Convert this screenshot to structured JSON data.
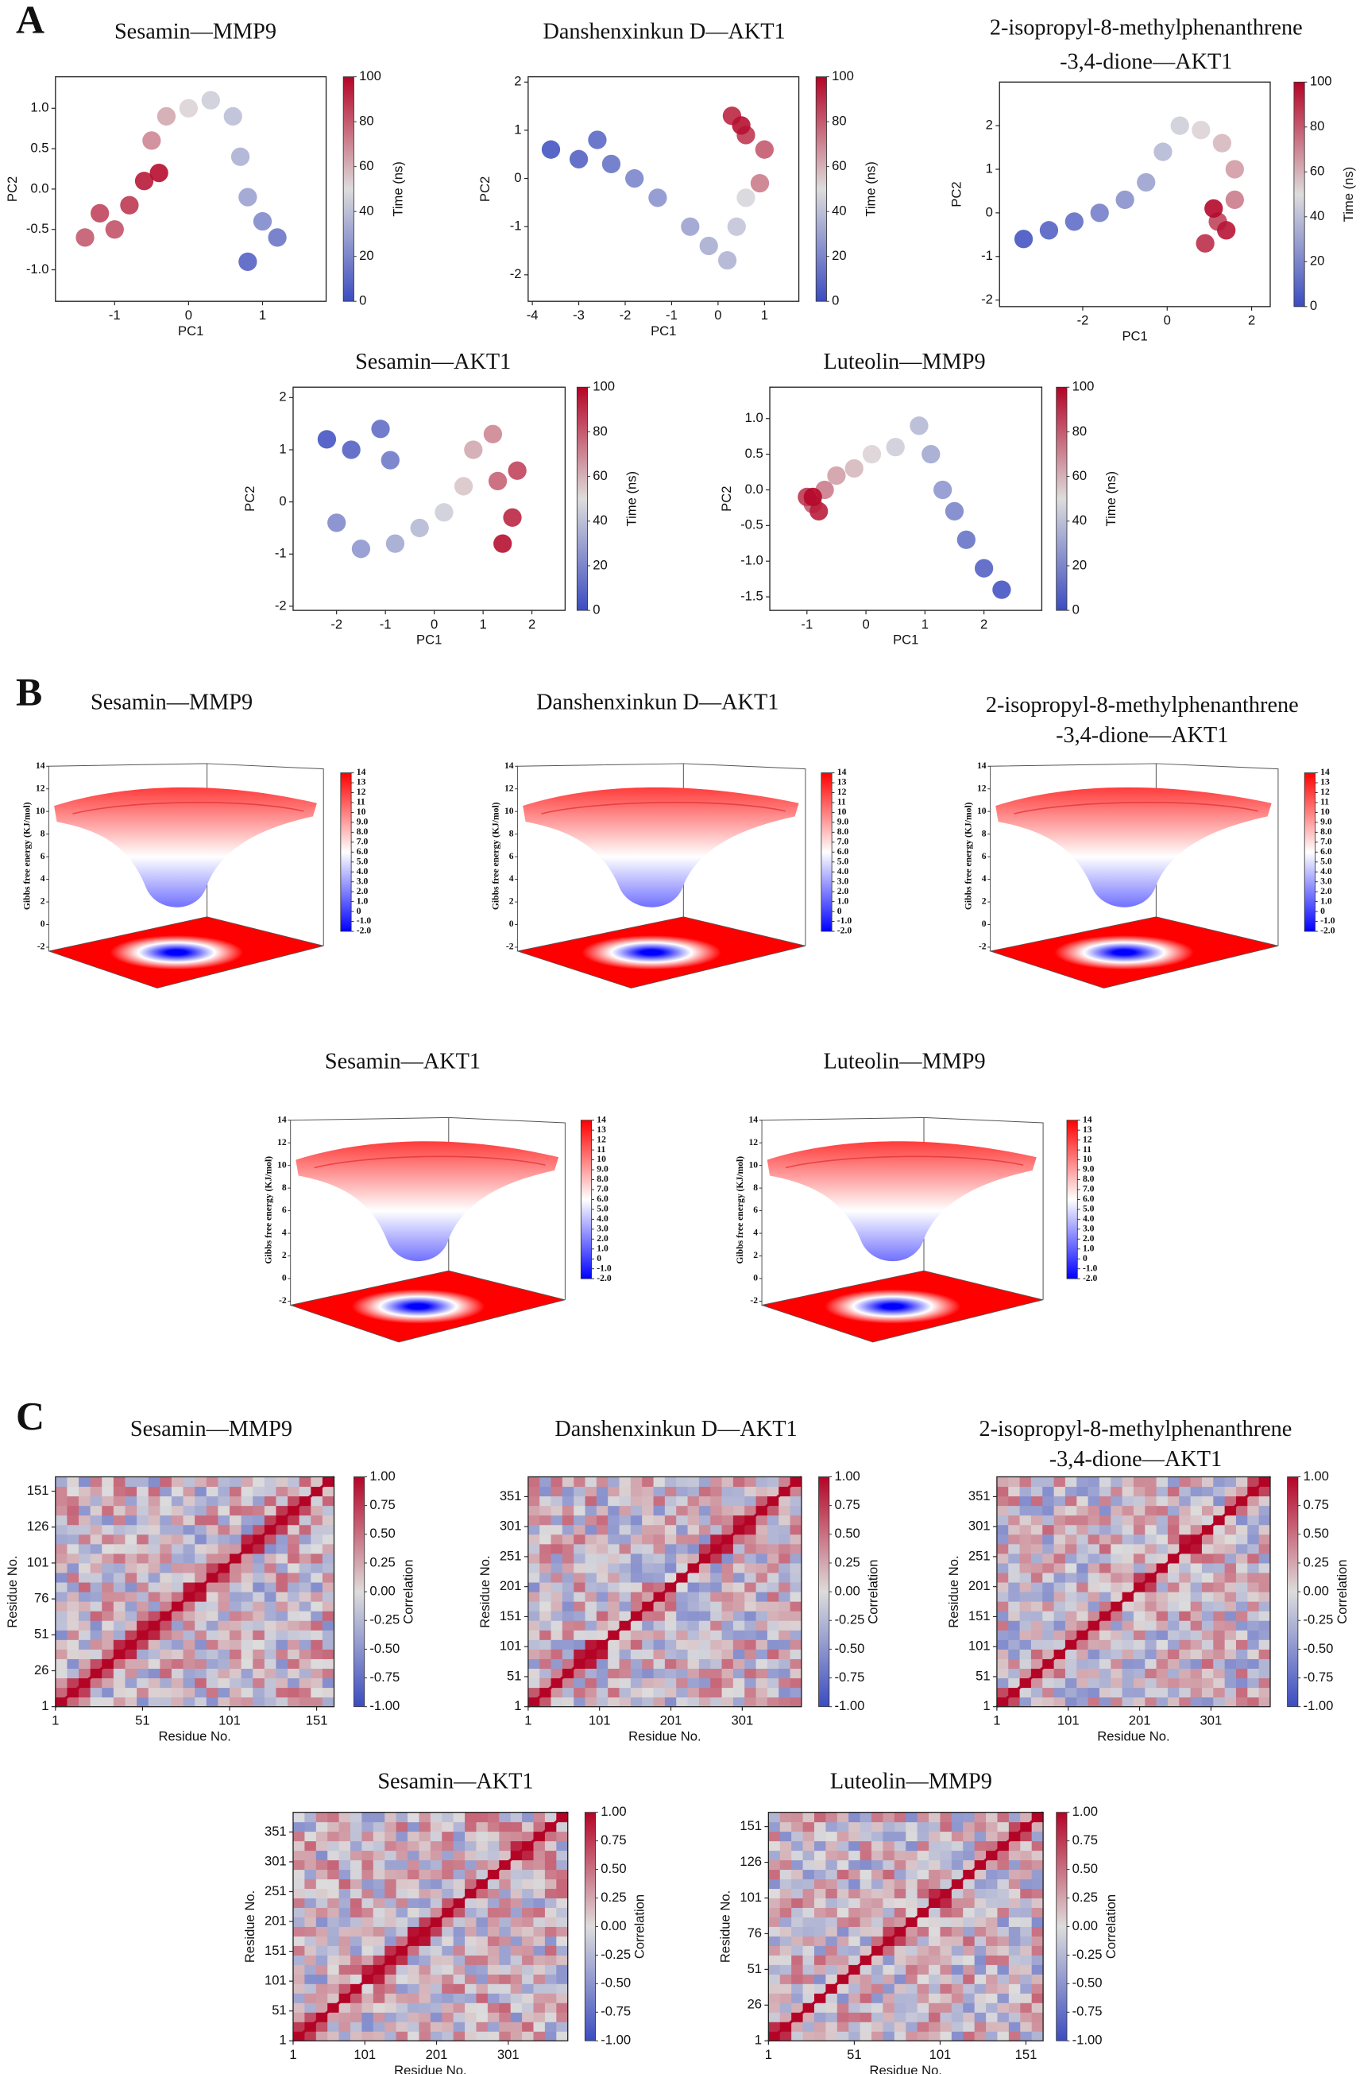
{
  "panel_labels": [
    "A",
    "B",
    "C"
  ],
  "chart_data": [
    {
      "type": "scatter",
      "title": "Sesamin—MMP9",
      "xlabel": "PC1",
      "ylabel": "PC2",
      "xlim": [
        -1.8,
        1.86
      ],
      "xticks": [
        -1,
        0,
        1
      ],
      "ylim": [
        -1.39,
        1.39
      ],
      "yticks": [
        {
          "value": -1,
          "label": "-1.0"
        },
        -0.5,
        {
          "value": 0,
          "label": "0.0"
        },
        0.5,
        {
          "value": 1,
          "label": "1.0"
        }
      ],
      "x": [
        -1.4,
        -1.2,
        -1.0,
        -0.8,
        -0.6,
        -0.4,
        -0.5,
        -0.3,
        0.0,
        0.3,
        0.6,
        0.7,
        0.8,
        1.0,
        1.2,
        0.8
      ],
      "y": [
        -0.6,
        -0.3,
        -0.5,
        -0.2,
        0.1,
        0.2,
        0.6,
        0.9,
        1.0,
        1.1,
        0.9,
        0.4,
        -0.1,
        -0.4,
        -0.6,
        -0.9
      ],
      "time": [
        80,
        85,
        82,
        88,
        95,
        98,
        70,
        62,
        52,
        45,
        40,
        35,
        30,
        22,
        15,
        8
      ],
      "colorbar_label": "Time (ns)",
      "clim": [
        0,
        100
      ],
      "cticks": [
        0,
        20,
        40,
        60,
        80,
        100
      ],
      "colormap": [
        "#3b4cc0",
        "#dddcdc",
        "#b40426"
      ]
    },
    {
      "type": "scatter",
      "title": "Danshenxinkun D—AKT1",
      "xlabel": "PC1",
      "ylabel": "PC2",
      "xlim": [
        -4.09,
        1.74
      ],
      "xticks": [
        -4,
        -3,
        -2,
        -1,
        0,
        1
      ],
      "ylim": [
        -2.55,
        2.11
      ],
      "yticks": [
        -2,
        -1,
        0,
        1,
        2
      ],
      "x": [
        -3.6,
        -3.0,
        -2.6,
        -2.3,
        -1.8,
        -1.3,
        -0.6,
        -0.2,
        0.2,
        0.4,
        0.6,
        0.9,
        1.0,
        0.6,
        0.3,
        0.5
      ],
      "y": [
        0.6,
        0.4,
        0.8,
        0.3,
        0.0,
        -0.4,
        -1.0,
        -1.4,
        -1.7,
        -1.0,
        -0.4,
        -0.1,
        0.6,
        0.9,
        1.3,
        1.1
      ],
      "time": [
        3,
        8,
        10,
        14,
        20,
        25,
        30,
        34,
        36,
        42,
        48,
        72,
        80,
        88,
        92,
        97
      ],
      "colorbar_label": "Time (ns)",
      "clim": [
        0,
        100
      ],
      "cticks": [
        0,
        20,
        40,
        60,
        80,
        100
      ],
      "colormap": [
        "#3b4cc0",
        "#dddcdc",
        "#b40426"
      ]
    },
    {
      "type": "scatter",
      "title": [
        "2-isopropyl-8-methylphenanthrene",
        "-3,4-dione—AKT1"
      ],
      "xlabel": "PC1",
      "ylabel": "PC2",
      "xlim": [
        -3.97,
        2.44
      ],
      "xticks": [
        -2,
        0,
        2
      ],
      "ylim": [
        -2.15,
        3.0
      ],
      "yticks": [
        -2,
        -1,
        0,
        1,
        2
      ],
      "x": [
        -3.4,
        -2.8,
        -2.2,
        -1.6,
        -1.0,
        -0.5,
        -0.1,
        0.3,
        0.8,
        1.3,
        1.6,
        1.6,
        1.2,
        0.9,
        1.4,
        1.1
      ],
      "y": [
        -0.6,
        -0.4,
        -0.2,
        0.0,
        0.3,
        0.7,
        1.4,
        2.0,
        1.9,
        1.6,
        1.0,
        0.3,
        -0.2,
        -0.7,
        -0.4,
        0.1
      ],
      "time": [
        3,
        8,
        12,
        18,
        24,
        30,
        38,
        45,
        52,
        58,
        65,
        72,
        85,
        90,
        96,
        99
      ],
      "colorbar_label": "Time (ns)",
      "clim": [
        0,
        100
      ],
      "cticks": [
        0,
        20,
        40,
        60,
        80,
        100
      ],
      "colormap": [
        "#3b4cc0",
        "#dddcdc",
        "#b40426"
      ]
    },
    {
      "type": "scatter",
      "title": "Sesamin—AKT1",
      "xlabel": "PC1",
      "ylabel": "PC2",
      "xlim": [
        -2.89,
        2.68
      ],
      "xticks": [
        -2,
        -1,
        0,
        1,
        2
      ],
      "ylim": [
        -2.08,
        2.2
      ],
      "yticks": [
        -2,
        -1,
        0,
        1,
        2
      ],
      "x": [
        -2.2,
        -1.7,
        -1.1,
        -0.9,
        -2.0,
        -1.5,
        -0.8,
        -0.3,
        0.2,
        0.6,
        0.8,
        1.2,
        1.3,
        1.7,
        1.6,
        1.4
      ],
      "y": [
        1.2,
        1.0,
        1.4,
        0.8,
        -0.4,
        -0.9,
        -0.8,
        -0.5,
        -0.2,
        0.3,
        1.0,
        1.3,
        0.4,
        0.6,
        -0.3,
        -0.8
      ],
      "time": [
        3,
        8,
        12,
        16,
        22,
        26,
        32,
        38,
        45,
        55,
        62,
        70,
        78,
        85,
        92,
        97
      ],
      "colorbar_label": "Time (ns)",
      "clim": [
        0,
        100
      ],
      "cticks": [
        0,
        20,
        40,
        60,
        80,
        100
      ],
      "colormap": [
        "#3b4cc0",
        "#dddcdc",
        "#b40426"
      ]
    },
    {
      "type": "scatter",
      "title": "Luteolin—MMP9",
      "xlabel": "PC1",
      "ylabel": "PC2",
      "xlim": [
        -1.63,
        2.98
      ],
      "xticks": [
        -1,
        0,
        1,
        2
      ],
      "ylim": [
        -1.69,
        1.44
      ],
      "yticks": [
        -1.5,
        {
          "value": -1,
          "label": "-1.0"
        },
        -0.5,
        {
          "value": 0,
          "label": "0.0"
        },
        0.5,
        {
          "value": 1,
          "label": "1.0"
        }
      ],
      "x": [
        2.3,
        2.0,
        1.7,
        1.5,
        1.3,
        1.1,
        0.9,
        0.5,
        0.1,
        -0.2,
        -0.5,
        -0.7,
        -0.9,
        -1.0,
        -0.8,
        -0.9
      ],
      "y": [
        -1.4,
        -1.1,
        -0.7,
        -0.3,
        0.0,
        0.5,
        0.9,
        0.6,
        0.5,
        0.3,
        0.2,
        0.0,
        -0.2,
        -0.1,
        -0.3,
        -0.1
      ],
      "time": [
        3,
        8,
        14,
        20,
        26,
        32,
        38,
        45,
        52,
        58,
        64,
        72,
        80,
        88,
        94,
        99
      ],
      "colorbar_label": "Time (ns)",
      "clim": [
        0,
        100
      ],
      "cticks": [
        0,
        20,
        40,
        60,
        80,
        100
      ],
      "colormap": [
        "#3b4cc0",
        "#dddcdc",
        "#b40426"
      ]
    },
    {
      "type": "surface3d",
      "title": "Sesamin—MMP9",
      "zlabel": "Gibbs free energy (KJ/mol)",
      "zlim": [
        -2,
        14
      ],
      "zticks": [
        -2,
        0,
        2,
        4,
        6,
        8,
        10,
        12,
        14
      ],
      "clim": [
        -2,
        14
      ],
      "cticks": [
        {
          "value": -2,
          "label": "-2.0"
        },
        {
          "value": -1,
          "label": "-1.0"
        },
        0,
        {
          "value": 1,
          "label": "1.0"
        },
        {
          "value": 2,
          "label": "2.0"
        },
        {
          "value": 3,
          "label": "3.0"
        },
        {
          "value": 4,
          "label": "4.0"
        },
        {
          "value": 5,
          "label": "5.0"
        },
        {
          "value": 6,
          "label": "6.0"
        },
        {
          "value": 7,
          "label": "7.0"
        },
        {
          "value": 8,
          "label": "8.0"
        },
        {
          "value": 9,
          "label": "9.0"
        },
        10,
        11,
        12,
        13,
        14
      ],
      "colormap": [
        "#0000ff",
        "#ffffff",
        "#ff0000"
      ]
    },
    {
      "type": "surface3d",
      "title": "Danshenxinkun D—AKT1",
      "zlabel": "Gibbs free energy (KJ/mol)",
      "zlim": [
        -2,
        14
      ],
      "zticks": [
        -2,
        0,
        2,
        4,
        6,
        8,
        10,
        12,
        14
      ],
      "clim": [
        -2,
        14
      ],
      "cticks": [
        {
          "value": -2,
          "label": "-2.0"
        },
        {
          "value": -1,
          "label": "-1.0"
        },
        0,
        {
          "value": 1,
          "label": "1.0"
        },
        {
          "value": 2,
          "label": "2.0"
        },
        {
          "value": 3,
          "label": "3.0"
        },
        {
          "value": 4,
          "label": "4.0"
        },
        {
          "value": 5,
          "label": "5.0"
        },
        {
          "value": 6,
          "label": "6.0"
        },
        {
          "value": 7,
          "label": "7.0"
        },
        {
          "value": 8,
          "label": "8.0"
        },
        {
          "value": 9,
          "label": "9.0"
        },
        10,
        11,
        12,
        13,
        14
      ],
      "colormap": [
        "#0000ff",
        "#ffffff",
        "#ff0000"
      ]
    },
    {
      "type": "surface3d",
      "title": [
        "2-isopropyl-8-methylphenanthrene",
        "-3,4-dione—AKT1"
      ],
      "zlabel": "Gibbs free energy (KJ/mol)",
      "zlim": [
        -2,
        14
      ],
      "zticks": [
        -2,
        0,
        2,
        4,
        6,
        8,
        10,
        12,
        14
      ],
      "clim": [
        -2,
        14
      ],
      "cticks": [
        {
          "value": -2,
          "label": "-2.0"
        },
        {
          "value": -1,
          "label": "-1.0"
        },
        0,
        {
          "value": 1,
          "label": "1.0"
        },
        {
          "value": 2,
          "label": "2.0"
        },
        {
          "value": 3,
          "label": "3.0"
        },
        {
          "value": 4,
          "label": "4.0"
        },
        {
          "value": 5,
          "label": "5.0"
        },
        {
          "value": 6,
          "label": "6.0"
        },
        {
          "value": 7,
          "label": "7.0"
        },
        {
          "value": 8,
          "label": "8.0"
        },
        {
          "value": 9,
          "label": "9.0"
        },
        10,
        11,
        12,
        13,
        14
      ],
      "colormap": [
        "#0000ff",
        "#ffffff",
        "#ff0000"
      ]
    },
    {
      "type": "surface3d",
      "title": "Sesamin—AKT1",
      "zlabel": "Gibbs free energy (KJ/mol)",
      "zlim": [
        -2,
        14
      ],
      "zticks": [
        -2,
        0,
        2,
        4,
        6,
        8,
        10,
        12,
        14
      ],
      "clim": [
        -2,
        14
      ],
      "cticks": [
        {
          "value": -2,
          "label": "-2.0"
        },
        {
          "value": -1,
          "label": "-1.0"
        },
        0,
        {
          "value": 1,
          "label": "1.0"
        },
        {
          "value": 2,
          "label": "2.0"
        },
        {
          "value": 3,
          "label": "3.0"
        },
        {
          "value": 4,
          "label": "4.0"
        },
        {
          "value": 5,
          "label": "5.0"
        },
        {
          "value": 6,
          "label": "6.0"
        },
        {
          "value": 7,
          "label": "7.0"
        },
        {
          "value": 8,
          "label": "8.0"
        },
        {
          "value": 9,
          "label": "9.0"
        },
        10,
        11,
        12,
        13,
        14
      ],
      "colormap": [
        "#0000ff",
        "#ffffff",
        "#ff0000"
      ]
    },
    {
      "type": "surface3d",
      "title": "Luteolin—MMP9",
      "zlabel": "Gibbs free energy (KJ/mol)",
      "zlim": [
        -2,
        14
      ],
      "zticks": [
        -2,
        0,
        2,
        4,
        6,
        8,
        10,
        12,
        14
      ],
      "clim": [
        -2,
        14
      ],
      "cticks": [
        {
          "value": -2,
          "label": "-2.0"
        },
        {
          "value": -1,
          "label": "-1.0"
        },
        0,
        {
          "value": 1,
          "label": "1.0"
        },
        {
          "value": 2,
          "label": "2.0"
        },
        {
          "value": 3,
          "label": "3.0"
        },
        {
          "value": 4,
          "label": "4.0"
        },
        {
          "value": 5,
          "label": "5.0"
        },
        {
          "value": 6,
          "label": "6.0"
        },
        {
          "value": 7,
          "label": "7.0"
        },
        {
          "value": 8,
          "label": "8.0"
        },
        {
          "value": 9,
          "label": "9.0"
        },
        10,
        11,
        12,
        13,
        14
      ],
      "colormap": [
        "#0000ff",
        "#ffffff",
        "#ff0000"
      ]
    },
    {
      "type": "heatmap",
      "title": "Sesamin—MMP9",
      "xlabel": "Residue No.",
      "ylabel": "Residue No.",
      "xlim": [
        1,
        161
      ],
      "ylim": [
        1,
        161
      ],
      "xticks": [
        1,
        51,
        101,
        151
      ],
      "yticks": [
        1,
        26,
        51,
        76,
        101,
        126,
        151
      ],
      "colorbar_label": "Correlation",
      "clim": [
        -1,
        1
      ],
      "cticks": [
        {
          "value": -1,
          "label": "-1.00"
        },
        -0.75,
        {
          "value": -0.5,
          "label": "-0.50"
        },
        -0.25,
        {
          "value": 0,
          "label": "0.00"
        },
        0.25,
        {
          "value": 0.5,
          "label": "0.50"
        },
        0.75,
        {
          "value": 1,
          "label": "1.00"
        }
      ],
      "colormap": [
        "#3b4cc0",
        "#dddcdc",
        "#b40426"
      ]
    },
    {
      "type": "heatmap",
      "title": "Danshenxinkun D—AKT1",
      "xlabel": "Residue No.",
      "ylabel": "Residue No.",
      "xlim": [
        1,
        384
      ],
      "ylim": [
        1,
        384
      ],
      "xticks": [
        1,
        101,
        201,
        301
      ],
      "yticks": [
        1,
        51,
        101,
        151,
        201,
        251,
        301,
        351
      ],
      "colorbar_label": "Correlation",
      "clim": [
        -1,
        1
      ],
      "cticks": [
        {
          "value": -1,
          "label": "-1.00"
        },
        -0.75,
        {
          "value": -0.5,
          "label": "-0.50"
        },
        -0.25,
        {
          "value": 0,
          "label": "0.00"
        },
        0.25,
        {
          "value": 0.5,
          "label": "0.50"
        },
        0.75,
        {
          "value": 1,
          "label": "1.00"
        }
      ],
      "colormap": [
        "#3b4cc0",
        "#dddcdc",
        "#b40426"
      ]
    },
    {
      "type": "heatmap",
      "title": [
        "2-isopropyl-8-methylphenanthrene",
        "-3,4-dione—AKT1"
      ],
      "xlabel": "Residue No.",
      "ylabel": "Residue No.",
      "xlim": [
        1,
        384
      ],
      "ylim": [
        1,
        384
      ],
      "xticks": [
        1,
        101,
        201,
        301
      ],
      "yticks": [
        1,
        51,
        101,
        151,
        201,
        251,
        301,
        351
      ],
      "colorbar_label": "Correlation",
      "clim": [
        -1,
        1
      ],
      "cticks": [
        {
          "value": -1,
          "label": "-1.00"
        },
        -0.75,
        {
          "value": -0.5,
          "label": "-0.50"
        },
        -0.25,
        {
          "value": 0,
          "label": "0.00"
        },
        0.25,
        {
          "value": 0.5,
          "label": "0.50"
        },
        0.75,
        {
          "value": 1,
          "label": "1.00"
        }
      ],
      "colormap": [
        "#3b4cc0",
        "#dddcdc",
        "#b40426"
      ]
    },
    {
      "type": "heatmap",
      "title": "Sesamin—AKT1",
      "xlabel": "Residue No.",
      "ylabel": "Residue No.",
      "xlim": [
        1,
        384
      ],
      "ylim": [
        1,
        384
      ],
      "xticks": [
        1,
        101,
        201,
        301
      ],
      "yticks": [
        1,
        51,
        101,
        151,
        201,
        251,
        301,
        351
      ],
      "colorbar_label": "Correlation",
      "clim": [
        -1,
        1
      ],
      "cticks": [
        {
          "value": -1,
          "label": "-1.00"
        },
        -0.75,
        {
          "value": -0.5,
          "label": "-0.50"
        },
        -0.25,
        {
          "value": 0,
          "label": "0.00"
        },
        0.25,
        {
          "value": 0.5,
          "label": "0.50"
        },
        0.75,
        {
          "value": 1,
          "label": "1.00"
        }
      ],
      "colormap": [
        "#3b4cc0",
        "#dddcdc",
        "#b40426"
      ]
    },
    {
      "type": "heatmap",
      "title": "Luteolin—MMP9",
      "xlabel": "Residue No.",
      "ylabel": "Residue No.",
      "xlim": [
        1,
        161
      ],
      "ylim": [
        1,
        161
      ],
      "xticks": [
        1,
        51,
        101,
        151
      ],
      "yticks": [
        1,
        26,
        51,
        76,
        101,
        126,
        151
      ],
      "colorbar_label": "Correlation",
      "clim": [
        -1,
        1
      ],
      "cticks": [
        {
          "value": -1,
          "label": "-1.00"
        },
        -0.75,
        {
          "value": -0.5,
          "label": "-0.50"
        },
        -0.25,
        {
          "value": 0,
          "label": "0.00"
        },
        0.25,
        {
          "value": 0.5,
          "label": "0.50"
        },
        0.75,
        {
          "value": 1,
          "label": "1.00"
        }
      ],
      "colormap": [
        "#3b4cc0",
        "#dddcdc",
        "#b40426"
      ]
    }
  ]
}
